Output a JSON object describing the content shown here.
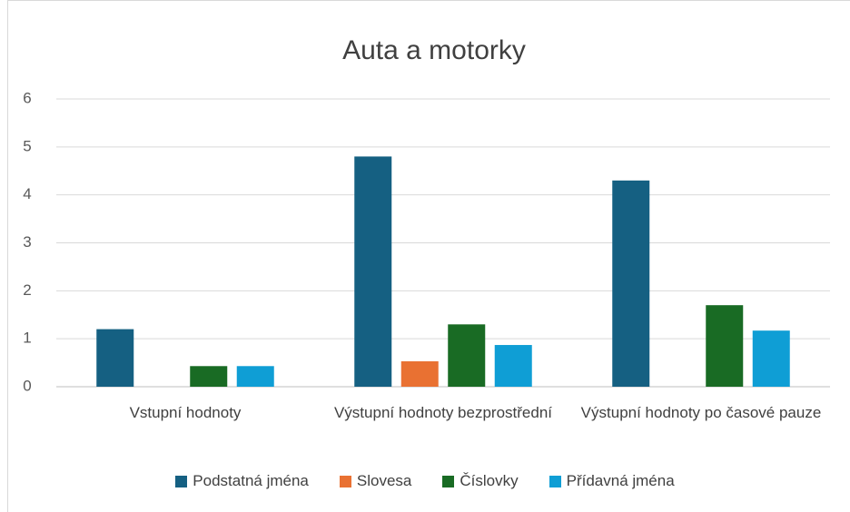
{
  "chart_data": {
    "type": "bar",
    "title": "Auta a motorky",
    "categories": [
      "Vstupní hodnoty",
      "Výstupní hodnoty bezprostřední",
      "Výstupní hodnoty po časové pauze"
    ],
    "series": [
      {
        "name": "Podstatná jména",
        "color": "#156082",
        "values": [
          1.2,
          4.8,
          4.3
        ]
      },
      {
        "name": "Slovesa",
        "color": "#e97132",
        "values": [
          0,
          0.53,
          0
        ]
      },
      {
        "name": "Číslovky",
        "color": "#196b24",
        "values": [
          0.43,
          1.3,
          1.7
        ]
      },
      {
        "name": "Přídavná jména",
        "color": "#0f9ed5",
        "values": [
          0.43,
          0.87,
          1.17
        ]
      }
    ],
    "ylim": [
      0,
      6
    ],
    "yticks": [
      0,
      1,
      2,
      3,
      4,
      5,
      6
    ],
    "grid": true,
    "legend": "bottom"
  }
}
